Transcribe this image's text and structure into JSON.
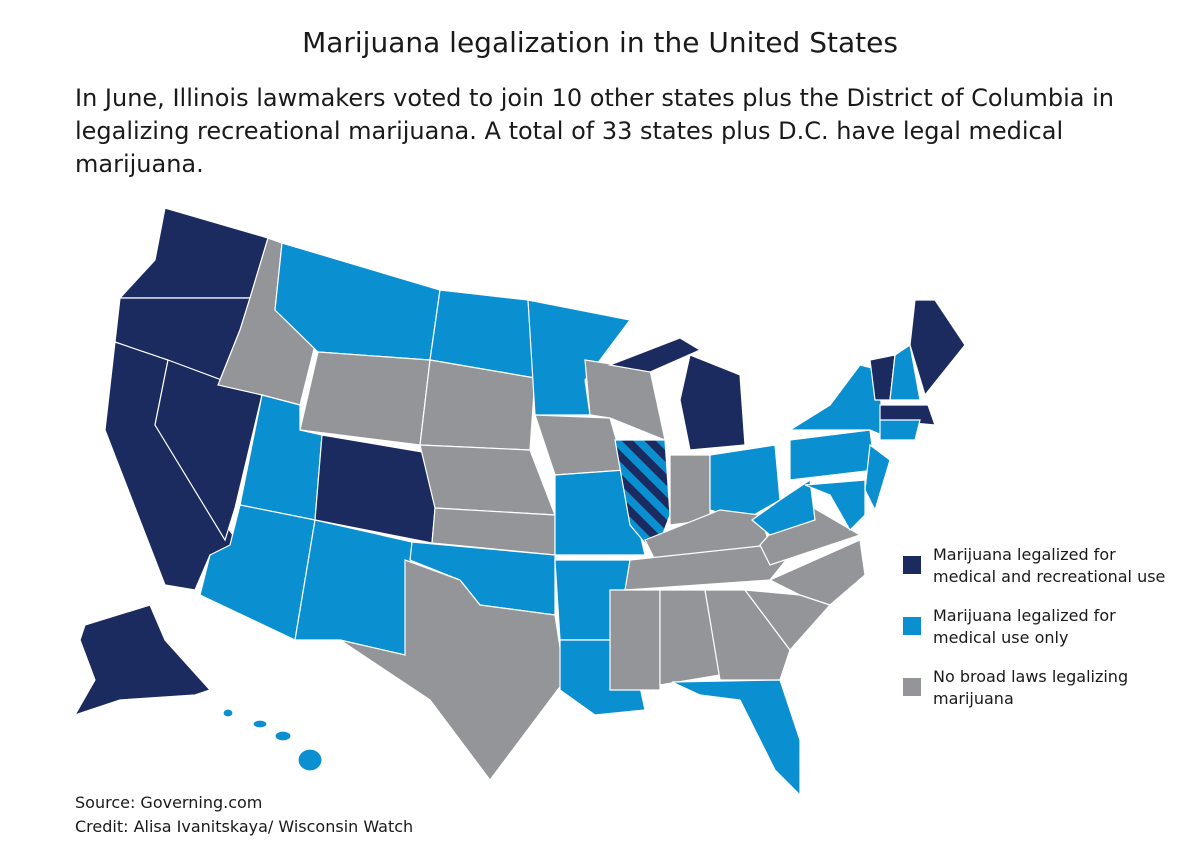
{
  "title": "Marijuana legalization in the United States",
  "subtitle": "In June, Illinois lawmakers voted to join 10 other states plus the District of Columbia in legalizing recreational marijuana. A total of 33 states plus D.C. have legal medical marijuana.",
  "legend": {
    "items": [
      {
        "label": "Marijuana legalized for medical and recreational use",
        "color": "#1b2b5f"
      },
      {
        "label": "Marijuana legalized for medical use only",
        "color": "#0a8fd0"
      },
      {
        "label": "No broad laws legalizing marijuana",
        "color": "#939598"
      }
    ]
  },
  "source": "Source: Governing.com",
  "credit": "Credit: Alisa Ivanitskaya/ Wisconsin Watch"
}
